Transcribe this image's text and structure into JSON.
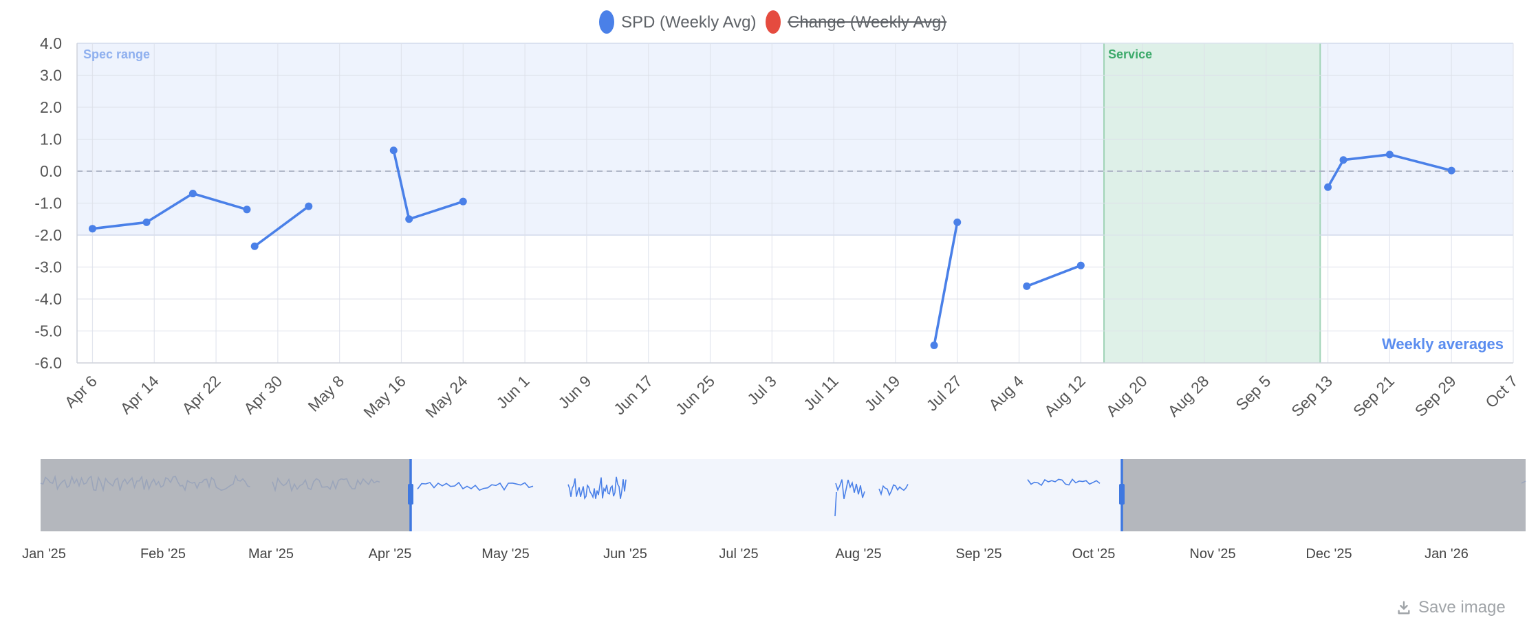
{
  "legend": [
    {
      "label": "SPD (Weekly Avg)",
      "color": "#4a80e8",
      "hidden": false
    },
    {
      "label": "Change (Weekly Avg)",
      "color": "#e54b3f",
      "hidden": true
    }
  ],
  "save_label": "Save image",
  "chart_data": {
    "type": "line",
    "x_range": [
      "2025-04-04",
      "2025-10-07"
    ],
    "ylim": [
      -6,
      4
    ],
    "yticks": [
      "4.0",
      "3.0",
      "2.0",
      "1.0",
      "0.0",
      "-1.0",
      "-2.0",
      "-3.0",
      "-4.0",
      "-5.0",
      "-6.0"
    ],
    "xticks": [
      "Apr 6",
      "Apr 14",
      "Apr 22",
      "Apr 30",
      "May 8",
      "May 16",
      "May 24",
      "Jun 1",
      "Jun 9",
      "Jun 17",
      "Jun 25",
      "Jul 3",
      "Jul 11",
      "Jul 19",
      "Jul 27",
      "Aug 4",
      "Aug 12",
      "Aug 20",
      "Aug 28",
      "Sep 5",
      "Sep 13",
      "Sep 21",
      "Sep 29",
      "Oct 7"
    ],
    "grid": true,
    "reference_line_y": 0,
    "bands": [
      {
        "label": "Spec range",
        "y_from": -2,
        "y_to": 4,
        "color": "#eef3fd",
        "label_color": "#8fb0ef"
      },
      {
        "label": "Service",
        "x_from": "2025-08-15",
        "x_to": "2025-09-12",
        "color": "#dcefe6",
        "label_color": "#3daa6b"
      }
    ],
    "annotation": "Weekly averages",
    "series": [
      {
        "name": "SPD (Weekly Avg)",
        "color": "#4a80e8",
        "segments": [
          [
            [
              "2025-04-06",
              -1.8
            ],
            [
              "2025-04-13",
              -1.6
            ],
            [
              "2025-04-19",
              -0.7
            ],
            [
              "2025-04-26",
              -1.2
            ]
          ],
          [
            [
              "2025-04-27",
              -2.35
            ],
            [
              "2025-05-04",
              -1.1
            ]
          ],
          [
            [
              "2025-05-15",
              0.65
            ],
            [
              "2025-05-17",
              -1.5
            ],
            [
              "2025-05-24",
              -0.95
            ]
          ],
          [
            [
              "2025-07-24",
              -5.45
            ],
            [
              "2025-07-27",
              -1.6
            ]
          ],
          [
            [
              "2025-08-05",
              -3.6
            ],
            [
              "2025-08-12",
              -2.95
            ]
          ],
          [
            [
              "2025-09-13",
              -0.5
            ],
            [
              "2025-09-15",
              0.35
            ],
            [
              "2025-09-21",
              0.52
            ],
            [
              "2025-09-29",
              0.02
            ]
          ]
        ]
      }
    ],
    "navigator": {
      "labels": [
        "Jan '25",
        "Feb '25",
        "Mar '25",
        "Apr '25",
        "May '25",
        "Jun '25",
        "Jul '25",
        "Aug '25",
        "Sep '25",
        "Oct '25",
        "Nov '25",
        "Dec '25",
        "Jan '26"
      ],
      "range_start": "2025-04-04",
      "range_end": "2025-10-07"
    }
  }
}
